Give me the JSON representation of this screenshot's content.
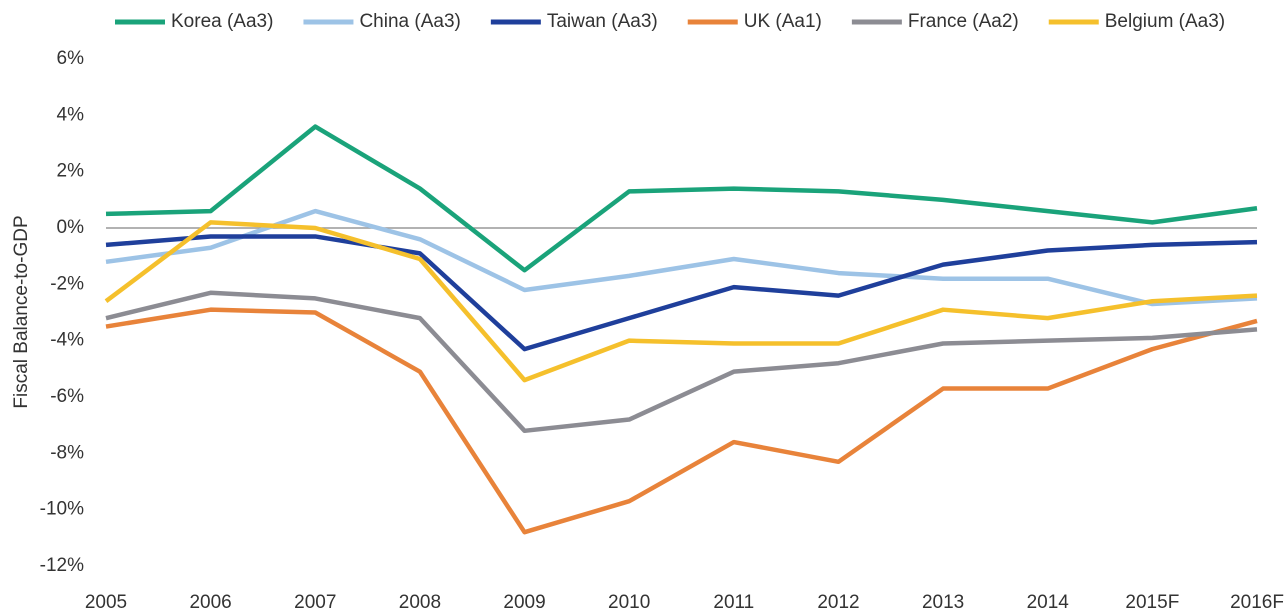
{
  "chart_data": {
    "type": "line",
    "y_label": "Fiscal Balance-to-GDP",
    "categories": [
      "2005",
      "2006",
      "2007",
      "2008",
      "2009",
      "2010",
      "2011",
      "2012",
      "2013",
      "2014",
      "2015F",
      "2016F"
    ],
    "series": [
      {
        "name": "Korea (Aa3)",
        "color": "#1aa37a",
        "values": [
          0.5,
          0.6,
          3.6,
          1.4,
          -1.5,
          1.3,
          1.4,
          1.3,
          1.0,
          0.6,
          0.2,
          0.7
        ]
      },
      {
        "name": "China (Aa3)",
        "color": "#9dc3e6",
        "values": [
          -1.2,
          -0.7,
          0.6,
          -0.4,
          -2.2,
          -1.7,
          -1.1,
          -1.6,
          -1.8,
          -1.8,
          -2.7,
          -2.5
        ]
      },
      {
        "name": "Taiwan (Aa3)",
        "color": "#1f3f9b",
        "values": [
          -0.6,
          -0.3,
          -0.3,
          -0.9,
          -4.3,
          -3.2,
          -2.1,
          -2.4,
          -1.3,
          -0.8,
          -0.6,
          -0.5
        ]
      },
      {
        "name": "UK (Aa1)",
        "color": "#e8833a",
        "values": [
          -3.5,
          -2.9,
          -3.0,
          -5.1,
          -10.8,
          -9.7,
          -7.6,
          -8.3,
          -5.7,
          -5.7,
          -4.3,
          -3.3
        ]
      },
      {
        "name": "France (Aa2)",
        "color": "#8c8c93",
        "values": [
          -3.2,
          -2.3,
          -2.5,
          -3.2,
          -7.2,
          -6.8,
          -5.1,
          -4.8,
          -4.1,
          -4.0,
          -3.9,
          -3.6
        ]
      },
      {
        "name": "Belgium (Aa3)",
        "color": "#f5c02c",
        "values": [
          -2.6,
          0.2,
          0.0,
          -1.1,
          -5.4,
          -4.0,
          -4.1,
          -4.1,
          -2.9,
          -3.2,
          -2.6,
          -2.4
        ]
      }
    ],
    "ylim": [
      -12,
      6
    ],
    "yticks": [
      {
        "value": -12,
        "label": "-12%"
      },
      {
        "value": -10,
        "label": "-10%"
      },
      {
        "value": -8,
        "label": "-8%"
      },
      {
        "value": -6,
        "label": "-6%"
      },
      {
        "value": -4,
        "label": "-4%"
      },
      {
        "value": -2,
        "label": "-2%"
      },
      {
        "value": 0,
        "label": "0%"
      },
      {
        "value": 2,
        "label": "2%"
      },
      {
        "value": 4,
        "label": "4%"
      },
      {
        "value": 6,
        "label": "6%"
      }
    ],
    "grid": false
  }
}
